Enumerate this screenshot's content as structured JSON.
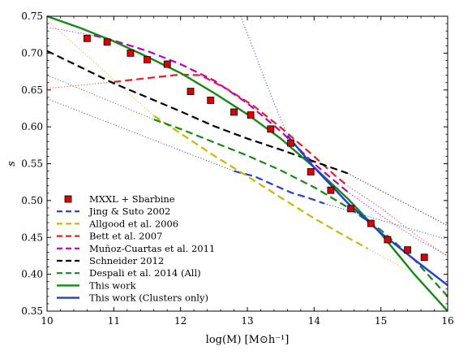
{
  "chart_data": {
    "type": "line",
    "title": "",
    "xlabel": "log(M) [M⊙h⁻¹]",
    "ylabel": "s",
    "xlim": [
      10,
      16
    ],
    "ylim": [
      0.35,
      0.75
    ],
    "xticks": [
      "10",
      "11",
      "12",
      "13",
      "14",
      "15",
      "16"
    ],
    "yticks": [
      "0.35",
      "0.40",
      "0.45",
      "0.50",
      "0.55",
      "0.60",
      "0.65",
      "0.70",
      "0.75"
    ],
    "grid": false,
    "legend_position": "bottom-left",
    "scatter": {
      "name": "MXXL + Sbarbine",
      "color": "#dd0000",
      "x": [
        10.6,
        10.9,
        11.25,
        11.5,
        11.8,
        12.15,
        12.45,
        12.8,
        13.05,
        13.35,
        13.65,
        13.95,
        14.25,
        14.55,
        14.85,
        15.1,
        15.4,
        15.65
      ],
      "y": [
        0.72,
        0.715,
        0.7,
        0.691,
        0.685,
        0.648,
        0.636,
        0.62,
        0.616,
        0.597,
        0.578,
        0.539,
        0.514,
        0.489,
        0.469,
        0.447,
        0.433,
        0.423
      ]
    },
    "series": [
      {
        "name": "Jing & Suto 2002",
        "color": "#1f3fd8",
        "style": "dashed",
        "x": [
          12.8,
          13.1,
          13.4,
          13.65,
          13.9,
          14.15
        ],
        "y": [
          0.54,
          0.533,
          0.521,
          0.511,
          0.504,
          0.496
        ]
      },
      {
        "name": "Allgood et al. 2006",
        "color": "#c9b800",
        "style": "dashed",
        "x": [
          11.6,
          12.0,
          12.5,
          13.0,
          13.5,
          14.0,
          14.4,
          14.8
        ],
        "y": [
          0.615,
          0.591,
          0.561,
          0.533,
          0.504,
          0.476,
          0.455,
          0.435
        ]
      },
      {
        "name": "Bett et al. 2007",
        "color": "#e82020",
        "style": "dashed",
        "x": [
          11.0,
          11.5,
          12.0,
          12.3,
          12.7,
          13.1,
          13.5,
          14.0,
          14.3,
          14.5
        ],
        "y": [
          0.661,
          0.666,
          0.671,
          0.67,
          0.651,
          0.628,
          0.599,
          0.56,
          0.535,
          0.52
        ]
      },
      {
        "name": "Muñoz-Cuartas et al. 2011",
        "color": "#c000c0",
        "style": "dashed",
        "x": [
          10.7,
          11.0,
          11.5,
          12.0,
          12.5,
          13.0,
          13.5,
          14.0,
          14.5
        ],
        "y": [
          0.724,
          0.717,
          0.703,
          0.685,
          0.663,
          0.632,
          0.594,
          0.55,
          0.512
        ]
      },
      {
        "name": "Schneider 2012",
        "color": "#000000",
        "style": "dashed",
        "x": [
          10.0,
          10.5,
          11.0,
          11.5,
          12.0,
          12.5,
          13.0,
          13.5,
          14.0,
          14.5
        ],
        "y": [
          0.703,
          0.681,
          0.659,
          0.64,
          0.621,
          0.601,
          0.584,
          0.569,
          0.553,
          0.537
        ]
      },
      {
        "name": "Despali et al. 2014 (All)",
        "color": "#138a13",
        "style": "dashed",
        "x": [
          11.6,
          12.0,
          12.5,
          13.0,
          13.5,
          14.0,
          14.5,
          15.0,
          15.5,
          16.0
        ],
        "y": [
          0.61,
          0.597,
          0.579,
          0.561,
          0.541,
          0.518,
          0.491,
          0.46,
          0.42,
          0.37
        ]
      },
      {
        "name": "This work",
        "color": "#138a13",
        "style": "solid",
        "x": [
          10.0,
          10.5,
          11.0,
          11.5,
          12.0,
          12.5,
          13.0,
          13.5,
          14.0,
          14.5,
          15.0,
          15.5,
          16.0
        ],
        "y": [
          0.75,
          0.734,
          0.716,
          0.695,
          0.673,
          0.646,
          0.617,
          0.584,
          0.545,
          0.503,
          0.455,
          0.4,
          0.35
        ]
      },
      {
        "name": "This work (Clusters only)",
        "color": "#1f3fd8",
        "style": "solid",
        "x": [
          13.6,
          14.0,
          14.5,
          15.0,
          15.5,
          16.0
        ],
        "y": [
          0.588,
          0.545,
          0.497,
          0.456,
          0.42,
          0.385
        ]
      }
    ],
    "extrapolations": [
      {
        "color": "#1f3fd8",
        "x": [
          10.0,
          12.8
        ],
        "y": [
          0.638,
          0.54
        ]
      },
      {
        "color": "#c9b800",
        "x": [
          10.0,
          11.6
        ],
        "y": [
          0.745,
          0.615
        ]
      },
      {
        "color": "#e82020",
        "x": [
          10.0,
          11.0
        ],
        "y": [
          0.652,
          0.661
        ]
      },
      {
        "color": "#c000c0",
        "x": [
          10.0,
          10.7
        ],
        "y": [
          0.735,
          0.724
        ]
      },
      {
        "color": "#138a13",
        "x": [
          10.0,
          11.6
        ],
        "y": [
          0.67,
          0.61
        ]
      },
      {
        "color": "#1f3fd8",
        "x": [
          14.15,
          16.0
        ],
        "y": [
          0.496,
          0.447
        ]
      },
      {
        "color": "#c9b800",
        "x": [
          14.8,
          15.4
        ],
        "y": [
          0.435,
          0.405
        ]
      },
      {
        "color": "#e82020",
        "x": [
          14.5,
          15.0,
          15.5,
          16.0
        ],
        "y": [
          0.52,
          0.49,
          0.455,
          0.424
        ]
      },
      {
        "color": "#c000c0",
        "x": [
          14.5,
          15.0,
          15.5,
          16.0
        ],
        "y": [
          0.512,
          0.48,
          0.45,
          0.425
        ]
      },
      {
        "color": "#000000",
        "x": [
          14.5,
          16.0
        ],
        "y": [
          0.537,
          0.466
        ]
      },
      {
        "color": "#1f3fd8",
        "x": [
          12.9,
          13.3,
          13.6
        ],
        "y": [
          0.75,
          0.655,
          0.588
        ]
      }
    ]
  }
}
